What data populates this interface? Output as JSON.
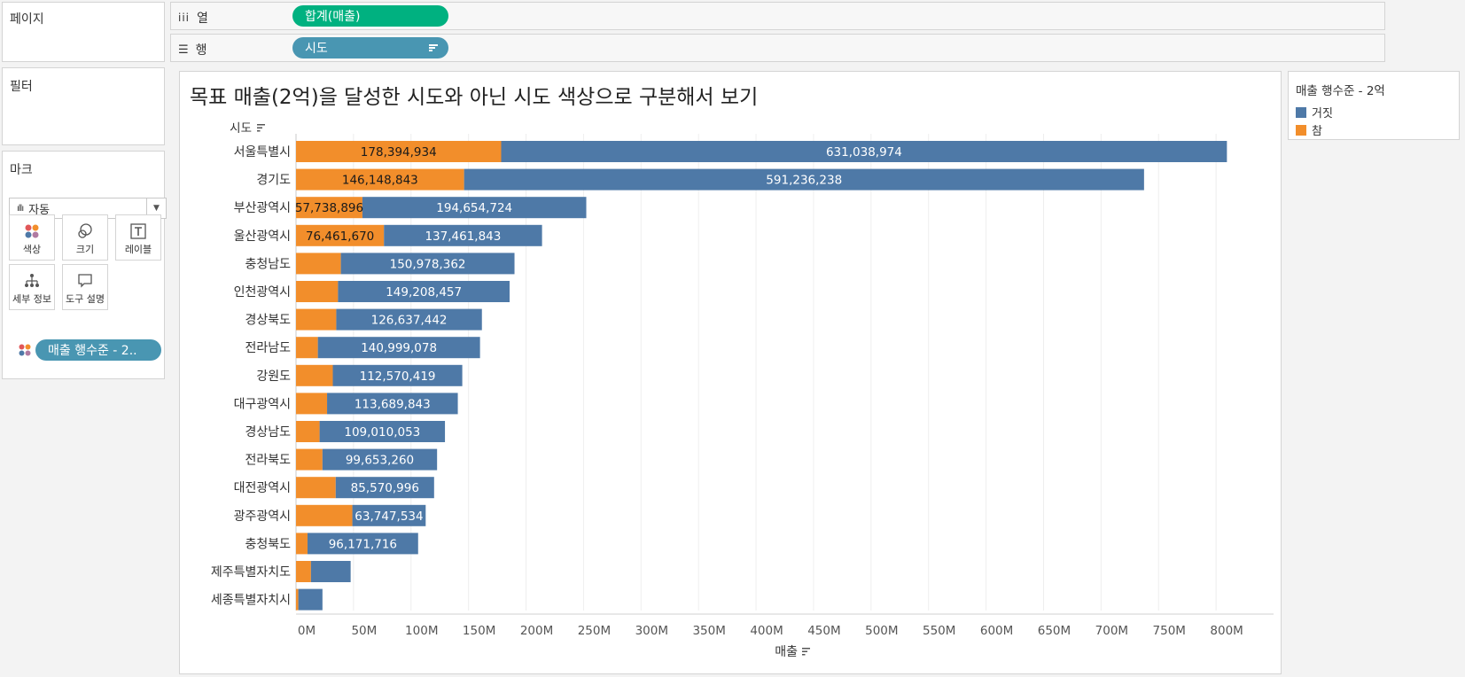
{
  "shelves": {
    "pages_label": "페이지",
    "columns_label": "열",
    "columns_pill": "합계(매출)",
    "rows_label": "행",
    "rows_pill": "시도"
  },
  "filters_label": "필터",
  "marks": {
    "title": "마크",
    "mark_type": "자동",
    "buttons": [
      {
        "label": "색상",
        "icon": "color-dots-icon"
      },
      {
        "label": "크기",
        "icon": "size-circles-icon"
      },
      {
        "label": "레이블",
        "icon": "text-label-icon"
      },
      {
        "label": "세부 정보",
        "icon": "detail-tree-icon"
      },
      {
        "label": "도구 설명",
        "icon": "tooltip-bubble-icon"
      }
    ],
    "color_pill": "매출 행수준 - 2.."
  },
  "legend": {
    "title": "매출 행수준 - 2억",
    "items": [
      {
        "label": "거짓",
        "color": "#4e79a7"
      },
      {
        "label": "참",
        "color": "#f28e2b"
      }
    ]
  },
  "viz_title": "목표 매출(2억)을 달성한 시도와 아닌 시도 색상으로 구분해서 보기",
  "chart_data": {
    "type": "bar",
    "orientation": "horizontal",
    "stacked": true,
    "row_header": "시도",
    "xlabel": "매출",
    "xlim": [
      0,
      850000000
    ],
    "x_ticks": [
      "0M",
      "50M",
      "100M",
      "150M",
      "200M",
      "250M",
      "300M",
      "350M",
      "400M",
      "450M",
      "500M",
      "550M",
      "600M",
      "650M",
      "700M",
      "750M",
      "800M"
    ],
    "gridlines": true,
    "categories": [
      "서울특별시",
      "경기도",
      "부산광역시",
      "울산광역시",
      "충청남도",
      "인천광역시",
      "경상북도",
      "전라남도",
      "강원도",
      "대구광역시",
      "경상남도",
      "전라북도",
      "대전광역시",
      "광주광역시",
      "충청북도",
      "제주특별자치도",
      "세종특별자치시"
    ],
    "series": [
      {
        "name": "참",
        "color": "#f28e2b",
        "values": [
          178394934,
          146148843,
          57738896,
          76461670,
          39000000,
          36500000,
          35000000,
          19000000,
          32000000,
          27000000,
          20500000,
          23000000,
          34500000,
          49000000,
          10000000,
          13000000,
          2000000
        ],
        "labels": [
          "178,394,934",
          "146,148,843",
          "57,738,896",
          "76,461,670",
          "",
          "",
          "",
          "",
          "",
          "",
          "",
          "",
          "",
          "",
          "",
          "",
          ""
        ]
      },
      {
        "name": "거짓",
        "color": "#4e79a7",
        "values": [
          631038974,
          591236238,
          194654724,
          137461843,
          150978362,
          149208457,
          126637442,
          140999078,
          112570419,
          113689843,
          109010053,
          99653260,
          85570996,
          63747534,
          96171716,
          34500000,
          21000000
        ],
        "labels": [
          "631,038,974",
          "591,236,238",
          "194,654,724",
          "137,461,843",
          "150,978,362",
          "149,208,457",
          "126,637,442",
          "140,999,078",
          "112,570,419",
          "113,689,843",
          "109,010,053",
          "99,653,260",
          "85,570,996",
          "63,747,534",
          "96,171,716",
          "",
          ""
        ]
      }
    ]
  }
}
